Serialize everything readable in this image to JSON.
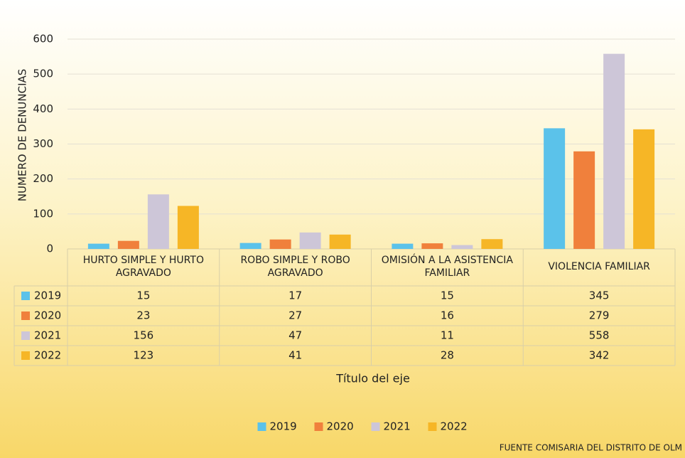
{
  "chart_data": {
    "type": "bar",
    "y_axis_label": "NUMERO DE DENUNCIAS",
    "x_axis_label": "Título del eje",
    "source": "FUENTE COMISARIA DEL DISTRITO DE OLM",
    "categories": [
      "HURTO SIMPLE Y HURTO AGRAVADO",
      "ROBO SIMPLE Y ROBO AGRAVADO",
      "OMISIÓN A LA ASISTENCIA FAMILIAR",
      "VIOLENCIA FAMILIAR"
    ],
    "series": [
      {
        "name": "2019",
        "color": "#5bc2ea",
        "values": [
          15,
          17,
          15,
          345
        ]
      },
      {
        "name": "2020",
        "color": "#f0803c",
        "values": [
          23,
          27,
          16,
          279
        ]
      },
      {
        "name": "2021",
        "color": "#cdc6d8",
        "values": [
          156,
          47,
          11,
          558
        ]
      },
      {
        "name": "2022",
        "color": "#f6b626",
        "values": [
          123,
          41,
          28,
          342
        ]
      }
    ],
    "ylim": [
      0,
      600
    ],
    "yticks": [
      0,
      100,
      200,
      300,
      400,
      500,
      600
    ],
    "grid": true,
    "legend": "bottom"
  }
}
